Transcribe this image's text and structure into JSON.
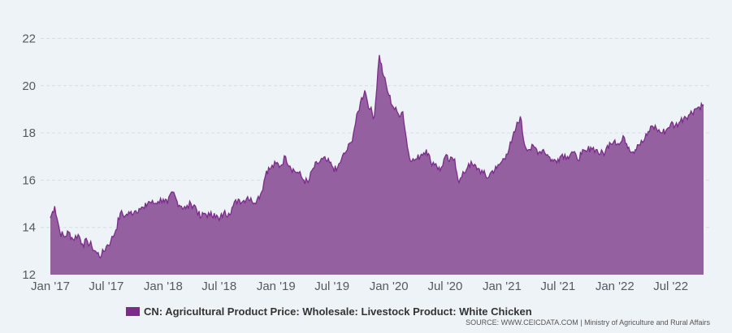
{
  "chart_data": {
    "type": "area",
    "x_ticks": [
      "Jan '17",
      "Jul '17",
      "Jan '18",
      "Jul '18",
      "Jan '19",
      "Jul '19",
      "Jan '20",
      "Jul '20",
      "Jan '21",
      "Jul '21",
      "Jan '22",
      "Jul '22"
    ],
    "y_ticks": [
      12,
      14,
      16,
      18,
      20,
      22
    ],
    "ylim": [
      12,
      22.6
    ],
    "grid": "horizontal dashed",
    "legend_position": "bottom",
    "series": [
      {
        "name": "CN: Agricultural Product Price: Wholesale: Livestock Product: White Chicken",
        "color": "#7b2c8a",
        "fill": "#9460a0",
        "x": [
          "2017-01-01",
          "2017-01-15",
          "2017-02-01",
          "2017-02-15",
          "2017-03-01",
          "2017-03-15",
          "2017-04-01",
          "2017-04-15",
          "2017-05-01",
          "2017-05-15",
          "2017-06-01",
          "2017-06-15",
          "2017-07-01",
          "2017-07-15",
          "2017-08-01",
          "2017-08-15",
          "2017-09-01",
          "2017-09-15",
          "2017-10-01",
          "2017-10-15",
          "2017-11-01",
          "2017-11-15",
          "2017-12-01",
          "2017-12-15",
          "2018-01-01",
          "2018-01-15",
          "2018-02-01",
          "2018-02-15",
          "2018-03-01",
          "2018-03-15",
          "2018-04-01",
          "2018-04-15",
          "2018-05-01",
          "2018-05-15",
          "2018-06-01",
          "2018-06-15",
          "2018-07-01",
          "2018-07-15",
          "2018-08-01",
          "2018-08-15",
          "2018-09-01",
          "2018-09-15",
          "2018-10-01",
          "2018-10-15",
          "2018-11-01",
          "2018-11-15",
          "2018-12-01",
          "2018-12-15",
          "2019-01-01",
          "2019-01-15",
          "2019-02-01",
          "2019-02-15",
          "2019-03-01",
          "2019-03-15",
          "2019-04-01",
          "2019-04-15",
          "2019-05-01",
          "2019-05-15",
          "2019-06-01",
          "2019-06-15",
          "2019-07-01",
          "2019-07-15",
          "2019-08-01",
          "2019-08-15",
          "2019-09-01",
          "2019-09-15",
          "2019-10-01",
          "2019-10-15",
          "2019-11-01",
          "2019-11-15",
          "2019-12-01",
          "2019-12-15",
          "2020-01-01",
          "2020-01-15",
          "2020-02-01",
          "2020-02-15",
          "2020-03-01",
          "2020-03-15",
          "2020-04-01",
          "2020-04-15",
          "2020-05-01",
          "2020-05-15",
          "2020-06-01",
          "2020-06-15",
          "2020-07-01",
          "2020-07-15",
          "2020-08-01",
          "2020-08-15",
          "2020-09-01",
          "2020-09-15",
          "2020-10-01",
          "2020-10-15",
          "2020-11-01",
          "2020-11-15",
          "2020-12-01",
          "2020-12-15",
          "2021-01-01",
          "2021-01-15",
          "2021-02-01",
          "2021-02-15",
          "2021-03-01",
          "2021-03-15",
          "2021-04-01",
          "2021-04-15",
          "2021-05-01",
          "2021-05-15",
          "2021-06-01",
          "2021-06-15",
          "2021-07-01",
          "2021-07-15",
          "2021-08-01",
          "2021-08-15",
          "2021-09-01",
          "2021-09-15",
          "2021-10-01",
          "2021-10-15",
          "2021-11-01",
          "2021-11-15",
          "2021-12-01",
          "2021-12-15",
          "2022-01-01",
          "2022-01-15",
          "2022-02-01",
          "2022-02-15",
          "2022-03-01",
          "2022-03-15",
          "2022-04-01",
          "2022-04-15",
          "2022-05-01",
          "2022-05-15",
          "2022-06-01",
          "2022-06-15",
          "2022-07-01",
          "2022-07-15",
          "2022-08-01",
          "2022-08-15",
          "2022-09-01",
          "2022-09-15",
          "2022-10-01",
          "2022-10-15"
        ],
        "values": [
          14.4,
          14.9,
          13.8,
          13.6,
          13.8,
          13.5,
          13.7,
          13.3,
          13.4,
          13.2,
          12.9,
          12.8,
          13.2,
          13.4,
          13.9,
          14.6,
          14.5,
          14.6,
          14.7,
          14.8,
          14.8,
          15.1,
          15.0,
          15.1,
          15.2,
          15.0,
          15.5,
          15.1,
          14.9,
          14.8,
          15.0,
          14.9,
          14.4,
          14.6,
          14.5,
          14.6,
          14.3,
          14.6,
          14.6,
          14.9,
          15.2,
          15.1,
          15.3,
          15.1,
          15.2,
          15.5,
          16.4,
          16.5,
          16.7,
          16.6,
          17.0,
          16.6,
          16.4,
          16.3,
          16.0,
          15.9,
          16.5,
          16.7,
          16.9,
          16.8,
          16.6,
          16.4,
          16.9,
          17.2,
          17.6,
          18.4,
          19.3,
          19.8,
          19.0,
          18.7,
          21.3,
          20.4,
          19.6,
          19.1,
          18.8,
          18.9,
          17.4,
          16.8,
          16.9,
          17.1,
          17.3,
          16.8,
          16.7,
          16.4,
          17.0,
          16.8,
          16.9,
          15.9,
          16.3,
          16.7,
          16.6,
          16.5,
          16.3,
          16.1,
          16.4,
          16.5,
          16.8,
          17.1,
          17.6,
          18.2,
          18.7,
          17.5,
          17.3,
          17.4,
          17.2,
          17.3,
          17.0,
          16.8,
          16.9,
          17.1,
          17.0,
          17.2,
          16.9,
          17.1,
          17.2,
          17.4,
          17.3,
          17.1,
          17.2,
          17.6,
          17.7,
          17.5,
          17.8,
          17.4,
          17.2,
          17.5,
          17.6,
          17.9,
          18.3,
          18.2,
          18.0,
          18.1,
          18.4,
          18.3,
          18.5,
          18.7,
          18.8,
          19.0,
          19.1,
          19.2
        ]
      }
    ]
  },
  "source_text": "SOURCE: WWW.CEICDATA.COM | Ministry of Agriculture and Rural Affairs"
}
